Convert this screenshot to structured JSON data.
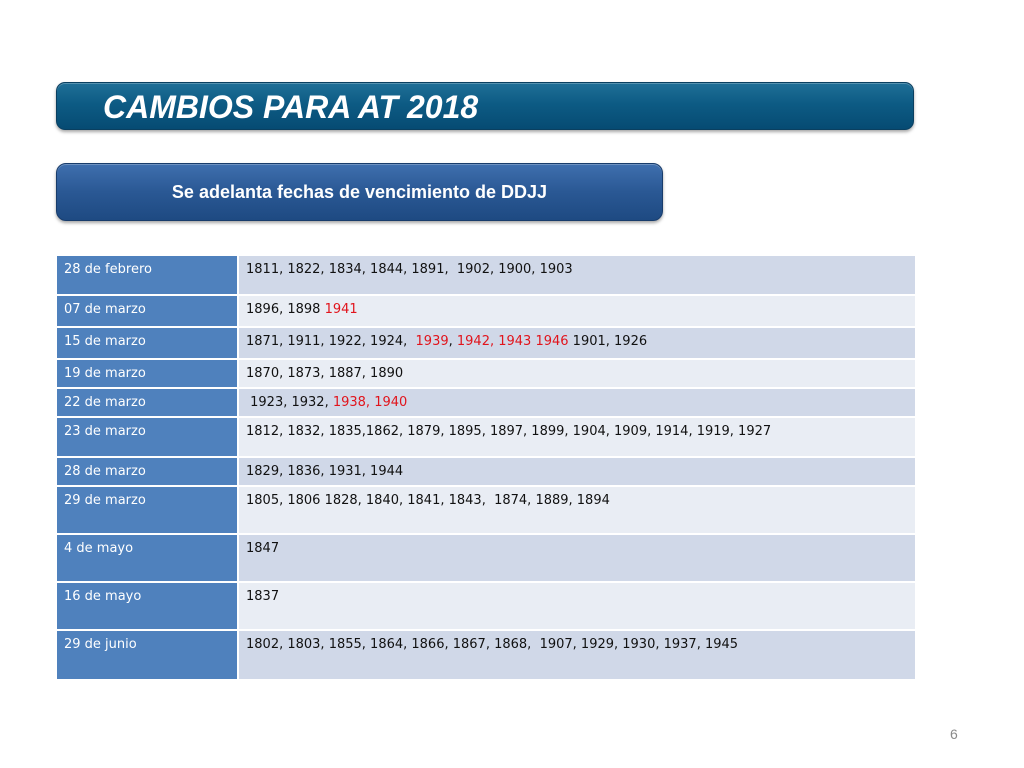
{
  "title": "CAMBIOS PARA AT 2018",
  "subtitle": "Se adelanta fechas de vencimiento de DDJJ",
  "colors": {
    "title_bar": "#0d5b84",
    "subtitle_bar": "#2a5894",
    "date_cell": "#4f81bd",
    "row_odd": "#d0d8e8",
    "row_even": "#e9edf4",
    "highlight": "#e1141c"
  },
  "rows": [
    {
      "date": "28 de febrero",
      "values": [
        {
          "text": "1811, 1822, 1834, 1844, 1891,  1902, 1900, 1903",
          "red": false
        }
      ]
    },
    {
      "date": "07 de marzo",
      "values": [
        {
          "text": "1896, 1898 ",
          "red": false
        },
        {
          "text": "1941",
          "red": true
        }
      ]
    },
    {
      "date": "15 de marzo",
      "values": [
        {
          "text": "1871, 1911, 1922, 1924,  ",
          "red": false
        },
        {
          "text": "1939",
          "red": true
        },
        {
          "text": ", ",
          "red": false
        },
        {
          "text": "1942, 1943 1946",
          "red": true
        },
        {
          "text": " 1901, 1926",
          "red": false
        }
      ]
    },
    {
      "date": "19 de marzo",
      "values": [
        {
          "text": "1870, 1873, 1887, 1890",
          "red": false
        }
      ]
    },
    {
      "date": "22 de marzo",
      "values": [
        {
          "text": " 1923, 1932, ",
          "red": false
        },
        {
          "text": "1938, 1940",
          "red": true
        }
      ]
    },
    {
      "date": "23 de marzo",
      "values": [
        {
          "text": "1812, 1832, 1835,1862, 1879, 1895, 1897, 1899, 1904, 1909, 1914, 1919, 1927",
          "red": false
        }
      ]
    },
    {
      "date": "28 de marzo",
      "values": [
        {
          "text": "1829, 1836, 1931, 1944",
          "red": false
        }
      ]
    },
    {
      "date": "29 de marzo",
      "values": [
        {
          "text": "1805, 1806 1828, 1840, 1841, 1843,  1874, 1889, 1894",
          "red": false
        }
      ]
    },
    {
      "date": "4 de mayo",
      "values": [
        {
          "text": "1847",
          "red": false
        }
      ]
    },
    {
      "date": "16 de mayo",
      "values": [
        {
          "text": "1837",
          "red": false
        }
      ]
    },
    {
      "date": "29 de junio",
      "values": [
        {
          "text": "1802, 1803, 1855, 1864, 1866, 1867, 1868,  1907, 1929, 1930, 1937, 1945",
          "red": false
        }
      ]
    }
  ],
  "page_number": "6"
}
